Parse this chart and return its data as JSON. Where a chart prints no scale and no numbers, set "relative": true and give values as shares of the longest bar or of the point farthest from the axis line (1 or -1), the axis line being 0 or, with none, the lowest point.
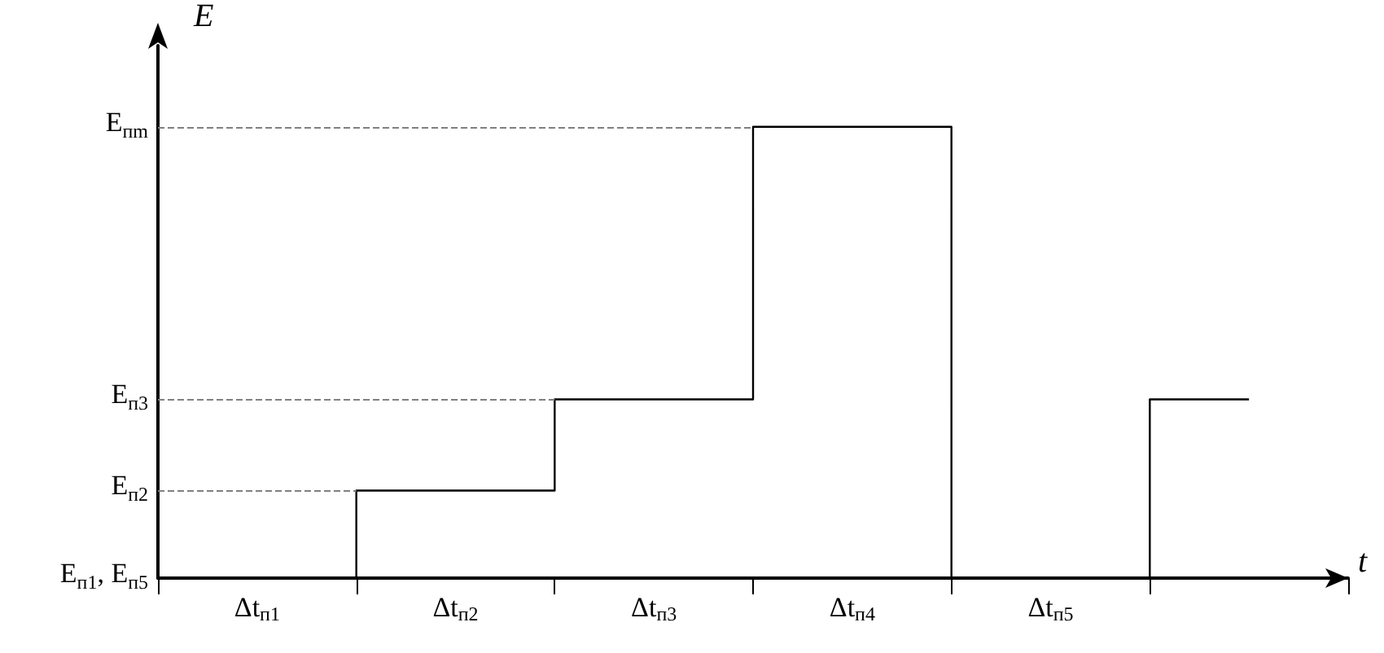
{
  "chart_data": {
    "type": "step",
    "relative": true,
    "xlabel": "t",
    "ylabel": "E",
    "categories": [
      "Δt$_{п1}$",
      "Δt$_{п2}$",
      "Δt$_{п3}$",
      "Δt$_{п4}$",
      "Δt$_{п5}$",
      null
    ],
    "series": [
      {
        "color": "#000000",
        "values": [
          0,
          0.194,
          0.396,
          1,
          0,
          0.396
        ]
      }
    ],
    "annotations": [
      "E$_{п1}$, E$_{п5}$"
    ],
    "ref_lines": [
      {
        "axis": "y",
        "value": 0.194,
        "label": "E$_{п2}$",
        "color": "#808080",
        "line_style": "dashed"
      },
      {
        "axis": "y",
        "value": 0.396,
        "label": "E$_{п3}$",
        "color": "#808080",
        "line_style": "dashed"
      },
      {
        "axis": "y",
        "value": 1,
        "label": "E$_{пm}$",
        "color": "#808080",
        "line_style": "dashed"
      }
    ],
    "grid": false,
    "marker": "none",
    "line_style": "solid"
  }
}
